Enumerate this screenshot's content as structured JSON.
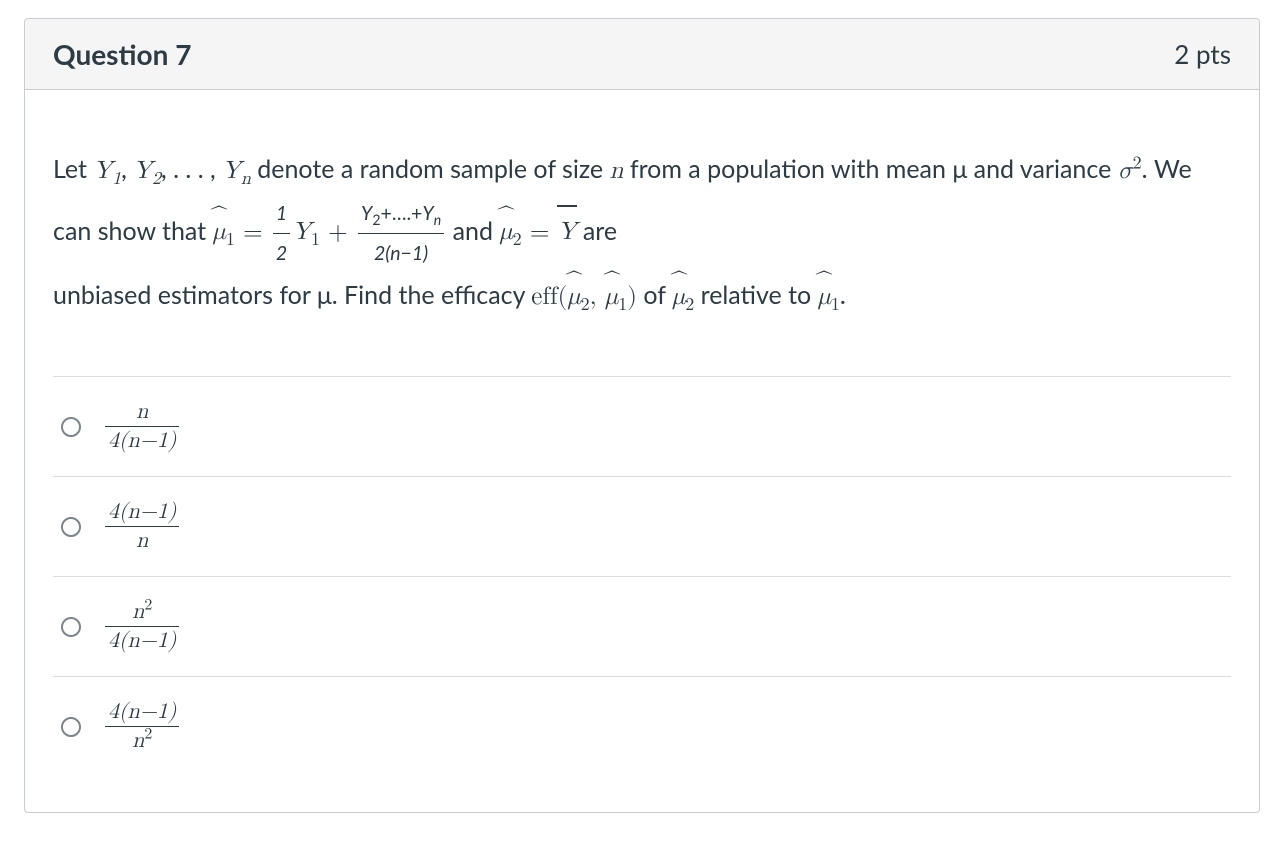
{
  "question": {
    "title": "Question 7",
    "points": "2 pts",
    "prompt_parts": {
      "p1": "Let ",
      "seq": "Y",
      "seq1sub": "1",
      "comma1": ", ",
      "seq2sub": "2",
      "ellipsis": ", . . . , ",
      "seqnsub": "n",
      "p2": " denote a random sample of size ",
      "n": "n",
      "p3": " from a population with mean μ and variance ",
      "sigma": "σ",
      "sq": "2",
      "p4": ". We can show that  ",
      "mu": "μ",
      "sub1": "1",
      "eq": " = ",
      "half_num": "1",
      "half_den": "2",
      "Y1": "Y",
      "Y1sub": "1",
      "plus": " + ",
      "big_num_a": "Y",
      "big_num_a_sub": "2",
      "big_num_mid": "+….+",
      "big_num_b": "Y",
      "big_num_b_sub": "n",
      "big_den": "2(n−1)",
      "and": " and ",
      "sub2": "2",
      "eq2": " = ",
      "ybar": "Y",
      "are": " are",
      "p5": "unbiased estimators for μ. Find the efficacy ",
      "eff": "eff",
      "open": "(",
      "comma2": ", ",
      "close": ")",
      "of": " of ",
      "rel": " relative to ",
      "dot": "."
    },
    "answers": [
      {
        "num": "n",
        "den": "4(n−1)"
      },
      {
        "num": "4(n−1)",
        "den": "n"
      },
      {
        "num": "n",
        "num_sup": "2",
        "den": "4(n−1)"
      },
      {
        "num": "4(n−1)",
        "den": "n",
        "den_sup": "2"
      }
    ]
  },
  "style": {
    "border_color": "#c7cdd1",
    "header_bg": "#f5f5f5",
    "text_color": "#2d3b45",
    "row_border": "#d9dde0",
    "radio_border": "#7b858c",
    "title_fontsize": 28,
    "body_fontsize": 25
  }
}
